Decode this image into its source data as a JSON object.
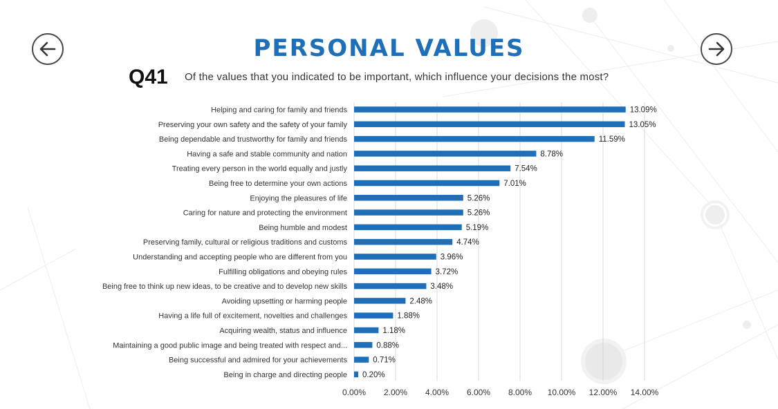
{
  "header": {
    "title": "PERSONAL VALUES",
    "question_id": "Q41",
    "question_text": "Of the values that you indicated to be important, which influence your decisions the most?"
  },
  "nav": {
    "prev_icon": "arrow-left-icon",
    "next_icon": "arrow-right-icon"
  },
  "colors": {
    "bar": "#1f6fb8",
    "title": "#1f6fb8",
    "grid": "#d9d9d9"
  },
  "chart_data": {
    "type": "bar",
    "orientation": "horizontal",
    "title": "",
    "xlabel": "",
    "ylabel": "",
    "xlim": [
      0,
      14
    ],
    "ticks": [
      "0.00%",
      "2.00%",
      "4.00%",
      "6.00%",
      "8.00%",
      "10.00%",
      "12.00%",
      "14.00%"
    ],
    "grid": true,
    "categories": [
      "Helping and caring for family and friends",
      "Preserving your own safety and the safety of your family",
      "Being dependable and trustworthy for family and friends",
      "Having a safe and stable community and nation",
      "Treating every person in the world equally and justly",
      "Being free to determine your own actions",
      "Enjoying the pleasures of life",
      "Caring for nature and protecting the environment",
      "Being humble and modest",
      "Preserving family, cultural or religious traditions and customs",
      "Understanding and accepting people who are different from you",
      "Fulfilling obligations and obeying rules",
      "Being free to think up new ideas, to be creative and to develop new skills",
      "Avoiding upsetting or harming people",
      "Having a life full of excitement, novelties and challenges",
      "Acquiring wealth, status and influence",
      "Maintaining a good public image and being treated with respect and...",
      "Being successful and admired for your achievements",
      "Being in charge and directing people"
    ],
    "values": [
      13.09,
      13.05,
      11.59,
      8.78,
      7.54,
      7.01,
      5.26,
      5.26,
      5.19,
      4.74,
      3.96,
      3.72,
      3.48,
      2.48,
      1.88,
      1.18,
      0.88,
      0.71,
      0.2
    ],
    "value_labels": [
      "13.09%",
      "13.05%",
      "11.59%",
      "8.78%",
      "7.54%",
      "7.01%",
      "5.26%",
      "5.26%",
      "5.19%",
      "4.74%",
      "3.96%",
      "3.72%",
      "3.48%",
      "2.48%",
      "1.88%",
      "1.18%",
      "0.88%",
      "0.71%",
      "0.20%"
    ]
  }
}
